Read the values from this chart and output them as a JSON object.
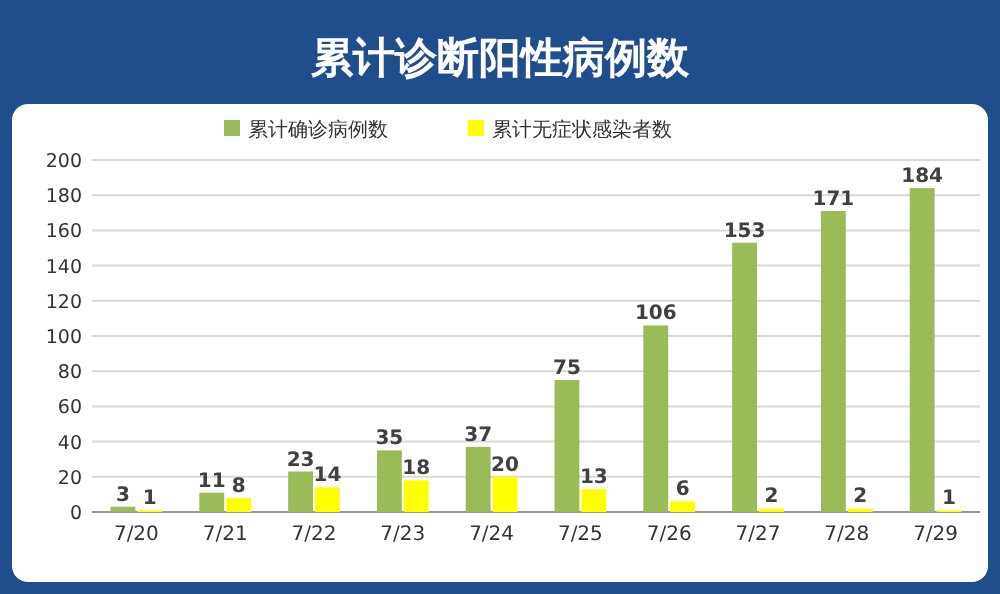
{
  "chart_data": {
    "type": "bar",
    "title": "累计诊断阳性病例数",
    "categories": [
      "7/20",
      "7/21",
      "7/22",
      "7/23",
      "7/24",
      "7/25",
      "7/26",
      "7/27",
      "7/28",
      "7/29"
    ],
    "series": [
      {
        "name": "累计确诊病例数",
        "color": "#9bbb59",
        "values": [
          3,
          11,
          23,
          35,
          37,
          75,
          106,
          153,
          171,
          184
        ]
      },
      {
        "name": "累计无症状感染者数",
        "color": "#ffff00",
        "values": [
          1,
          8,
          14,
          18,
          20,
          13,
          6,
          2,
          2,
          1
        ]
      }
    ],
    "ylim": [
      0,
      200
    ],
    "yticks": [
      0,
      20,
      40,
      60,
      80,
      100,
      120,
      140,
      160,
      180,
      200
    ],
    "grid": "y",
    "legend": "top",
    "data_labels": true
  }
}
